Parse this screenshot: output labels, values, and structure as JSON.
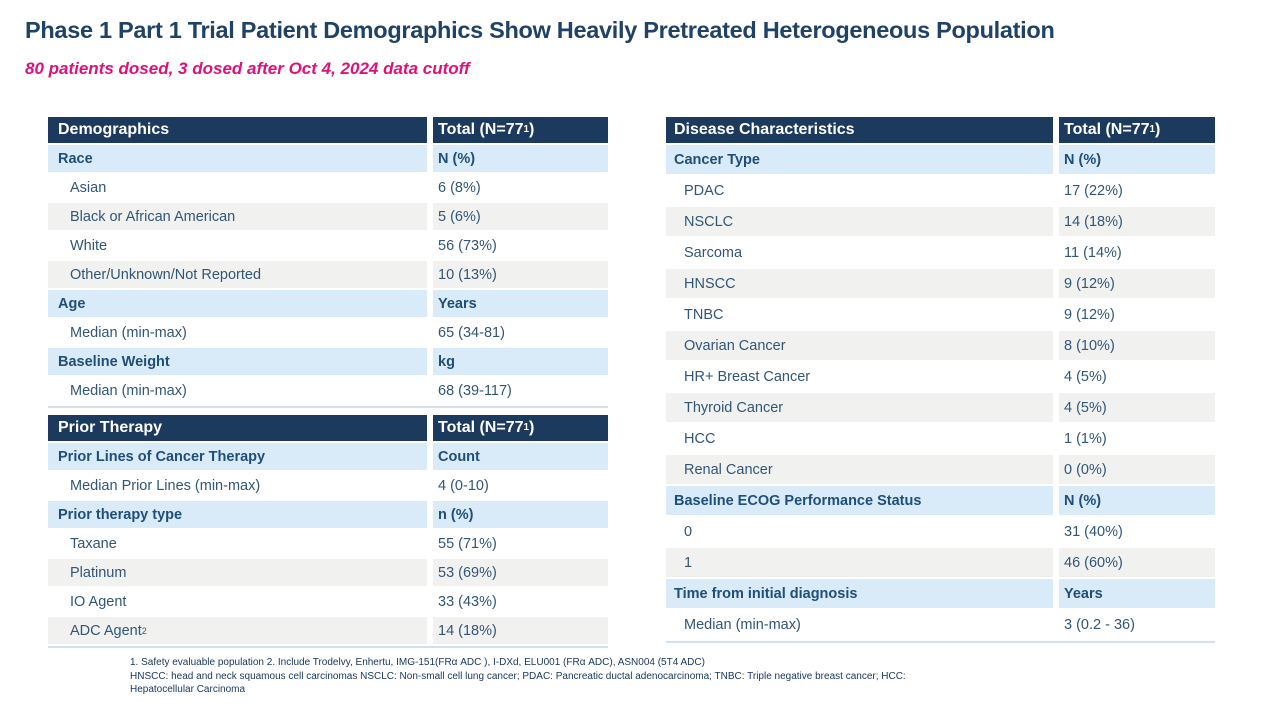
{
  "title": "Phase 1 Part 1 Trial Patient Demographics Show Heavily Pretreated Heterogeneous Population",
  "subtitle": "80 patients dosed, 3 dosed after Oct 4, 2024 data cutoff",
  "colors": {
    "header_bg": "#1c3a5e",
    "header_text": "#ffffff",
    "subheader_bg": "#d9eaf8",
    "subheader_text": "#1f4e79",
    "row_alt_bg": "#f1f1ef",
    "row_text": "#315677",
    "title_text": "#1f4266",
    "subtitle_text": "#e0107b",
    "footnote_text": "#17365d"
  },
  "tables": [
    {
      "id": "demographics",
      "header": {
        "label": "Demographics",
        "value": "Total (N=77",
        "value_sup": "1",
        "value_suffix": ")"
      },
      "rows": [
        {
          "type": "subheader",
          "label": "Race",
          "value": "N (%)"
        },
        {
          "type": "data",
          "label": "Asian",
          "value": "6 (8%)"
        },
        {
          "type": "data",
          "label": "Black or African American",
          "value": "5 (6%)"
        },
        {
          "type": "data",
          "label": "White",
          "value": "56 (73%)"
        },
        {
          "type": "data",
          "label": "Other/Unknown/Not Reported",
          "value": "10 (13%)"
        },
        {
          "type": "subheader",
          "label": "Age",
          "value": "Years"
        },
        {
          "type": "data",
          "label": "Median (min-max)",
          "value": "65 (34-81)"
        },
        {
          "type": "subheader",
          "label": "Baseline Weight",
          "value": "kg"
        },
        {
          "type": "data",
          "label": "Median (min-max)",
          "value": "68 (39-117)"
        }
      ]
    },
    {
      "id": "prior",
      "header": {
        "label": "Prior Therapy",
        "value": "Total (N=77",
        "value_sup": "1",
        "value_suffix": ")"
      },
      "rows": [
        {
          "type": "subheader",
          "label": "Prior Lines of Cancer Therapy",
          "value": "Count"
        },
        {
          "type": "data",
          "label": "Median Prior Lines (min-max)",
          "value": "4 (0-10)"
        },
        {
          "type": "subheader",
          "label": "Prior therapy type",
          "value": "n (%)"
        },
        {
          "type": "data",
          "label": "Taxane",
          "value": "55 (71%)"
        },
        {
          "type": "data",
          "label": "Platinum",
          "value": "53 (69%)"
        },
        {
          "type": "data",
          "label": "IO Agent",
          "value": "33 (43%)"
        },
        {
          "type": "data",
          "label": "ADC Agent",
          "label_sup": "2",
          "value": "14 (18%)"
        }
      ]
    },
    {
      "id": "disease",
      "header": {
        "label": "Disease Characteristics",
        "value": "Total (N=77",
        "value_sup": "1",
        "value_suffix": ")"
      },
      "rows": [
        {
          "type": "subheader",
          "label": "Cancer Type",
          "value": "N (%)"
        },
        {
          "type": "data",
          "label": "PDAC",
          "value": "17 (22%)"
        },
        {
          "type": "data",
          "label": "NSCLC",
          "value": "14 (18%)"
        },
        {
          "type": "data",
          "label": "Sarcoma",
          "value": "11 (14%)"
        },
        {
          "type": "data",
          "label": "HNSCC",
          "value": "9 (12%)"
        },
        {
          "type": "data",
          "label": "TNBC",
          "value": "9 (12%)"
        },
        {
          "type": "data",
          "label": "Ovarian Cancer",
          "value": "8 (10%)"
        },
        {
          "type": "data",
          "label": "HR+ Breast Cancer",
          "value": "4 (5%)"
        },
        {
          "type": "data",
          "label": "Thyroid Cancer",
          "value": "4 (5%)"
        },
        {
          "type": "data",
          "label": "HCC",
          "value": "1 (1%)"
        },
        {
          "type": "data",
          "label": "Renal Cancer",
          "value": "0 (0%)"
        },
        {
          "type": "subheader",
          "label": "Baseline ECOG Performance Status",
          "value": "N (%)"
        },
        {
          "type": "data",
          "label": "0",
          "value": "31 (40%)"
        },
        {
          "type": "data",
          "label": "1",
          "value": "46 (60%)"
        },
        {
          "type": "subheader",
          "label": "Time from initial diagnosis",
          "value": "Years"
        },
        {
          "type": "data",
          "label": "Median (min-max)",
          "value": "3 (0.2 - 36)"
        }
      ]
    }
  ],
  "footnotes": {
    "line1": "1. Safety evaluable population 2. Include Trodelvy, Enhertu, IMG-151(FRα ADC ), I-DXd, ELU001 (FRα ADC), ASN004 (5T4 ADC)",
    "line2": "HNSCC: head and neck squamous cell carcinomas NSCLC: Non-small cell lung cancer; PDAC: Pancreatic ductal adenocarcinoma; TNBC: Triple negative breast cancer; HCC:",
    "line3": "Hepatocellular Carcinoma"
  }
}
